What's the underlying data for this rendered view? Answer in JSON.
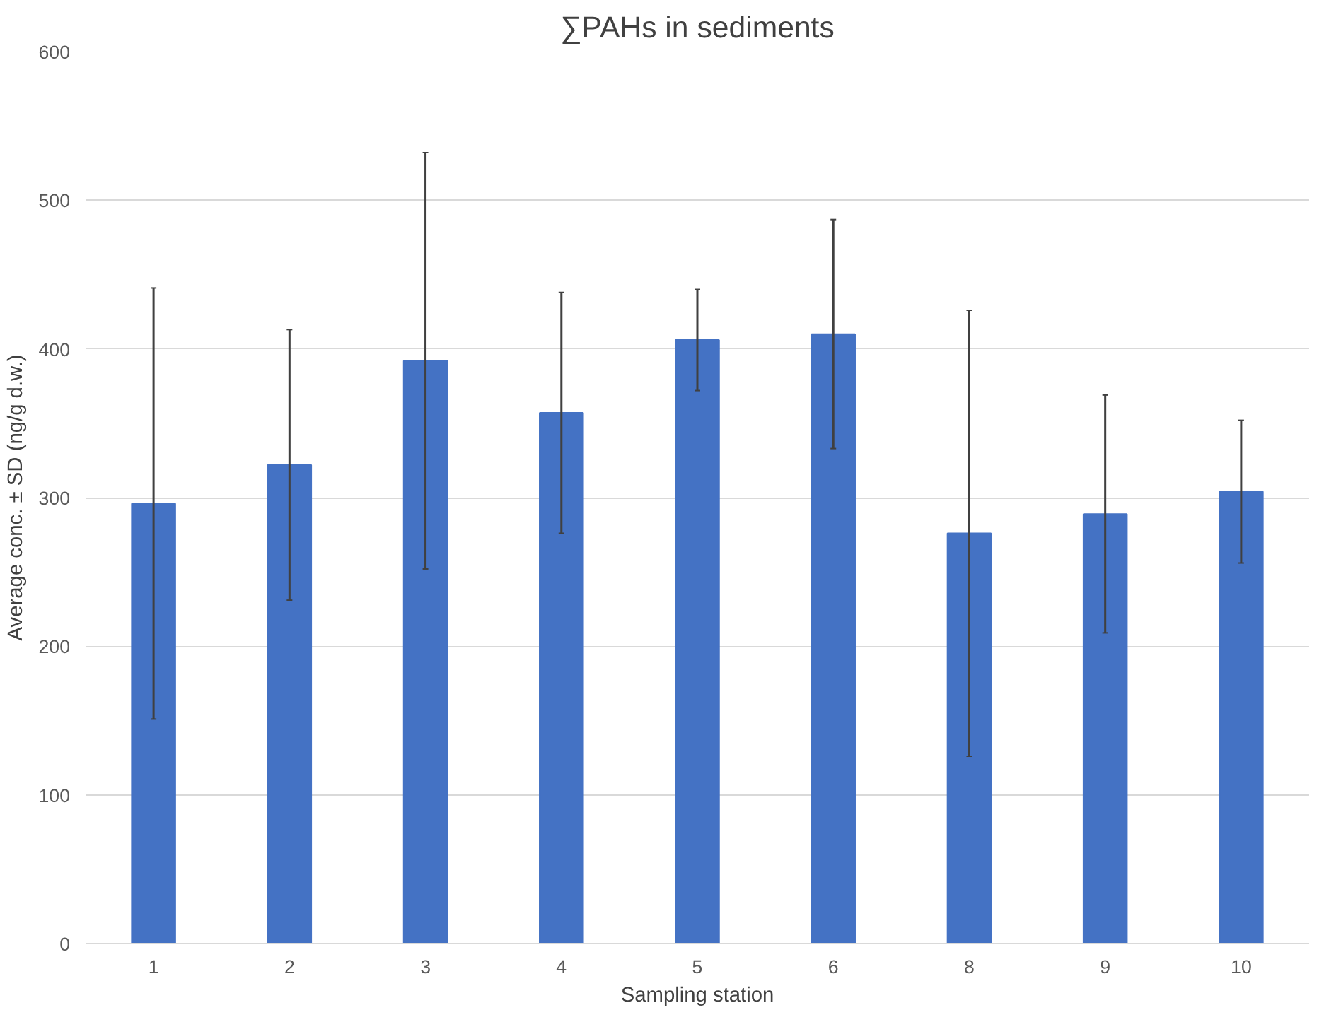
{
  "chart_data": {
    "type": "bar",
    "title": "∑PAHs in sediments",
    "xlabel": "Sampling station",
    "ylabel": "Average conc. ± SD (ng/g d.w.)",
    "categories": [
      "1",
      "2",
      "3",
      "4",
      "5",
      "6",
      "8",
      "9",
      "10"
    ],
    "values": [
      296,
      322,
      392,
      357,
      406,
      410,
      276,
      289,
      304
    ],
    "errors": [
      145,
      91,
      140,
      81,
      34,
      77,
      150,
      80,
      48
    ],
    "color": "#4472c4",
    "ylim": [
      0,
      600
    ],
    "yticks": [
      0,
      100,
      200,
      300,
      400,
      500,
      600
    ],
    "grid": "y"
  }
}
